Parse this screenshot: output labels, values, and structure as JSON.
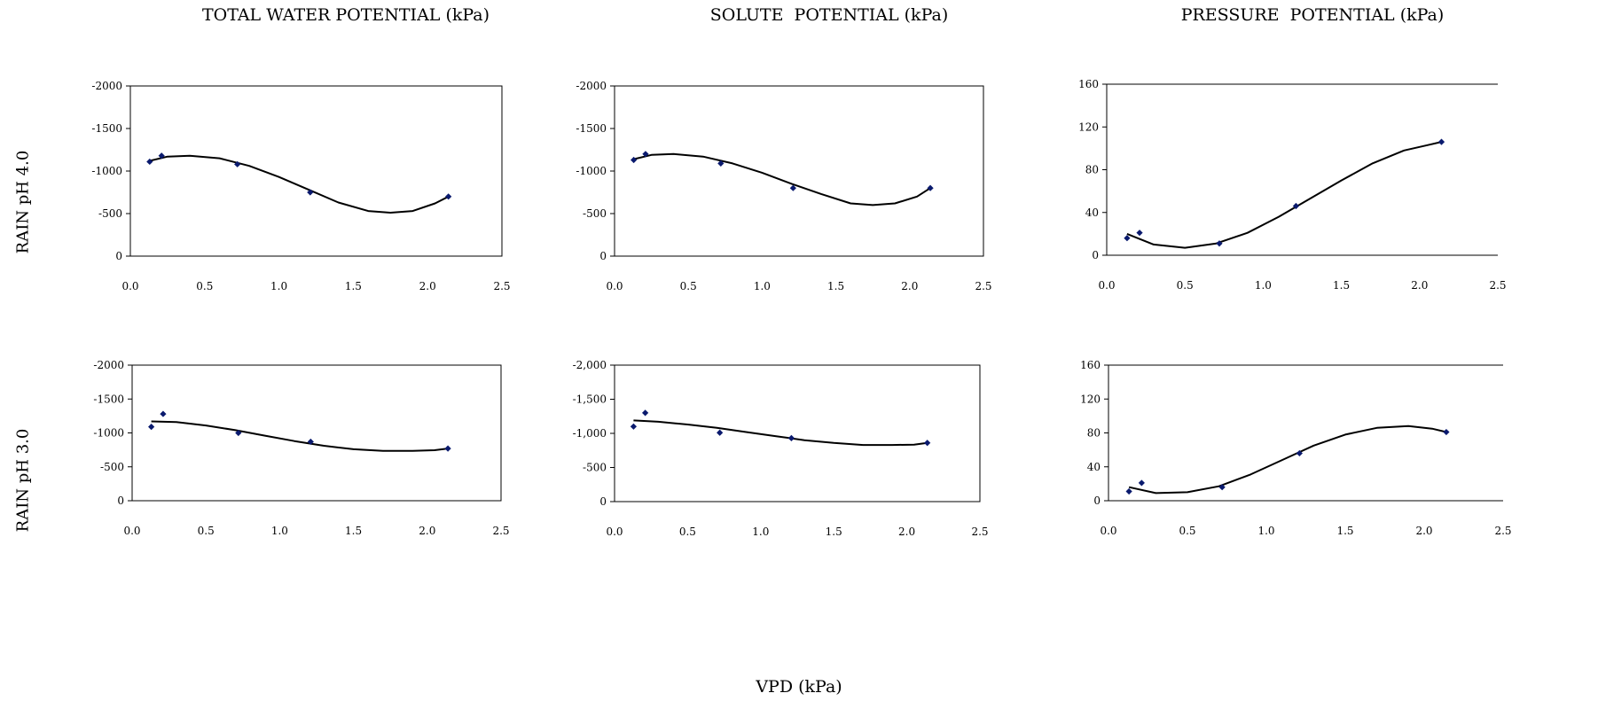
{
  "column_titles": [
    "TOTAL WATER POTENTIAL (kPa)",
    "SOLUTE  POTENTIAL (kPa)",
    "PRESSURE  POTENTIAL (kPa)"
  ],
  "row_labels": [
    "RAIN pH 4.0",
    "RAIN pH 3.0"
  ],
  "x_axis_title": "VPD (kPa)",
  "colors": {
    "marker": "#0a1a6e",
    "curve": "#000000",
    "axis": "#000000"
  },
  "chart_data": [
    {
      "type": "scatter",
      "row": "RAIN pH 4.0",
      "column": "TOTAL WATER POTENTIAL (kPa)",
      "xlim": [
        0,
        2.5
      ],
      "ylim": [
        0,
        -2000
      ],
      "x_ticks": [
        0.0,
        0.5,
        1.0,
        1.5,
        2.0,
        2.5
      ],
      "x_tick_labels": [
        "0.0",
        "0.5",
        "1.0",
        "1.5",
        "2.0",
        "2.5"
      ],
      "y_ticks": [
        0,
        -500,
        -1000,
        -1500,
        -2000
      ],
      "y_tick_labels": [
        "0",
        "-500",
        "-1000",
        "-1500",
        "-2000"
      ],
      "points": {
        "x": [
          0.13,
          0.21,
          0.72,
          1.21,
          2.14
        ],
        "y": [
          -1110,
          -1180,
          -1080,
          -750,
          -700
        ]
      },
      "trendline": {
        "x": [
          0.13,
          0.25,
          0.4,
          0.6,
          0.8,
          1.0,
          1.2,
          1.4,
          1.6,
          1.75,
          1.9,
          2.05,
          2.14
        ],
        "y": [
          -1120,
          -1170,
          -1180,
          -1150,
          -1060,
          -930,
          -780,
          -630,
          -530,
          -510,
          -530,
          -620,
          -700
        ]
      }
    },
    {
      "type": "scatter",
      "row": "RAIN pH 4.0",
      "column": "SOLUTE  POTENTIAL (kPa)",
      "xlim": [
        0,
        2.5
      ],
      "ylim": [
        0,
        -2000
      ],
      "x_ticks": [
        0.0,
        0.5,
        1.0,
        1.5,
        2.0,
        2.5
      ],
      "x_tick_labels": [
        "0.0",
        "0.5",
        "1.0",
        "1.5",
        "2.0",
        "2.5"
      ],
      "y_ticks": [
        0,
        -500,
        -1000,
        -1500,
        -2000
      ],
      "y_tick_labels": [
        "0",
        "-500",
        "-1000",
        "-1500",
        "-2000"
      ],
      "points": {
        "x": [
          0.13,
          0.21,
          0.72,
          1.21,
          2.14
        ],
        "y": [
          -1130,
          -1200,
          -1090,
          -800,
          -800
        ]
      },
      "trendline": {
        "x": [
          0.13,
          0.25,
          0.4,
          0.6,
          0.8,
          1.0,
          1.2,
          1.4,
          1.6,
          1.75,
          1.9,
          2.05,
          2.14
        ],
        "y": [
          -1140,
          -1190,
          -1200,
          -1170,
          -1090,
          -980,
          -850,
          -730,
          -620,
          -600,
          -620,
          -700,
          -800
        ]
      }
    },
    {
      "type": "scatter",
      "row": "RAIN pH 4.0",
      "column": "PRESSURE  POTENTIAL (kPa)",
      "xlim": [
        0,
        2.5
      ],
      "ylim": [
        0,
        160
      ],
      "x_ticks": [
        0.0,
        0.5,
        1.0,
        1.5,
        2.0,
        2.5
      ],
      "x_tick_labels": [
        "0.0",
        "0.5",
        "1.0",
        "1.5",
        "2.0",
        "2.5"
      ],
      "y_ticks": [
        0,
        40,
        80,
        120,
        160
      ],
      "y_tick_labels": [
        "0",
        "40",
        "80",
        "120",
        "160"
      ],
      "points": {
        "x": [
          0.13,
          0.21,
          0.72,
          1.21,
          2.14
        ],
        "y": [
          16,
          21,
          11,
          46,
          106
        ]
      },
      "trendline": {
        "x": [
          0.13,
          0.3,
          0.5,
          0.7,
          0.9,
          1.1,
          1.3,
          1.5,
          1.7,
          1.9,
          2.05,
          2.14
        ],
        "y": [
          20,
          10,
          7,
          11,
          21,
          36,
          53,
          70,
          86,
          98,
          103,
          106
        ]
      }
    },
    {
      "type": "scatter",
      "row": "RAIN pH 3.0",
      "column": "TOTAL WATER POTENTIAL (kPa)",
      "xlim": [
        0,
        2.5
      ],
      "ylim": [
        0,
        -2000
      ],
      "x_ticks": [
        0.0,
        0.5,
        1.0,
        1.5,
        2.0,
        2.5
      ],
      "x_tick_labels": [
        "0.0",
        "0.5",
        "1.0",
        "1.5",
        "2.0",
        "2.5"
      ],
      "y_ticks": [
        0,
        -500,
        -1000,
        -1500,
        -2000
      ],
      "y_tick_labels": [
        "0",
        "-500",
        "-1000",
        "-1500",
        "-2000"
      ],
      "points": {
        "x": [
          0.13,
          0.21,
          0.72,
          1.21,
          2.14
        ],
        "y": [
          -1090,
          -1280,
          -1000,
          -870,
          -770
        ]
      },
      "trendline": {
        "x": [
          0.13,
          0.3,
          0.5,
          0.7,
          0.9,
          1.1,
          1.3,
          1.5,
          1.7,
          1.9,
          2.05,
          2.14
        ],
        "y": [
          -1170,
          -1160,
          -1110,
          -1040,
          -960,
          -880,
          -810,
          -760,
          -735,
          -735,
          -745,
          -770
        ]
      }
    },
    {
      "type": "scatter",
      "row": "RAIN pH 3.0",
      "column": "SOLUTE  POTENTIAL (kPa)",
      "xlim": [
        0,
        2.5
      ],
      "ylim": [
        0,
        -2000
      ],
      "x_ticks": [
        0.0,
        0.5,
        1.0,
        1.5,
        2.0,
        2.5
      ],
      "x_tick_labels": [
        "0.0",
        "0.5",
        "1.0",
        "1.5",
        "2.0",
        "2.5"
      ],
      "y_ticks": [
        0,
        -500,
        -1000,
        -1500,
        -2000
      ],
      "y_tick_labels": [
        "0",
        "-500",
        "-1,000",
        "-1,500",
        "-2,000"
      ],
      "points": {
        "x": [
          0.13,
          0.21,
          0.72,
          1.21,
          2.14
        ],
        "y": [
          -1100,
          -1300,
          -1010,
          -930,
          -860
        ]
      },
      "trendline": {
        "x": [
          0.13,
          0.3,
          0.5,
          0.7,
          0.9,
          1.1,
          1.3,
          1.5,
          1.7,
          1.9,
          2.05,
          2.14
        ],
        "y": [
          -1190,
          -1170,
          -1130,
          -1080,
          -1020,
          -960,
          -900,
          -860,
          -830,
          -830,
          -835,
          -860
        ]
      }
    },
    {
      "type": "scatter",
      "row": "RAIN pH 3.0",
      "column": "PRESSURE  POTENTIAL (kPa)",
      "xlim": [
        0,
        2.5
      ],
      "ylim": [
        0,
        160
      ],
      "x_ticks": [
        0.0,
        0.5,
        1.0,
        1.5,
        2.0,
        2.5
      ],
      "x_tick_labels": [
        "0.0",
        "0.5",
        "1.0",
        "1.5",
        "2.0",
        "2.5"
      ],
      "y_ticks": [
        0,
        40,
        80,
        120,
        160
      ],
      "y_tick_labels": [
        "0",
        "40",
        "80",
        "120",
        "160"
      ],
      "points": {
        "x": [
          0.13,
          0.21,
          0.72,
          1.21,
          2.14
        ],
        "y": [
          11,
          21,
          16,
          56,
          81
        ]
      },
      "trendline": {
        "x": [
          0.13,
          0.3,
          0.5,
          0.7,
          0.9,
          1.1,
          1.3,
          1.5,
          1.7,
          1.9,
          2.05,
          2.14
        ],
        "y": [
          16,
          9,
          10,
          17,
          31,
          48,
          65,
          78,
          86,
          88,
          85,
          81
        ]
      }
    }
  ]
}
